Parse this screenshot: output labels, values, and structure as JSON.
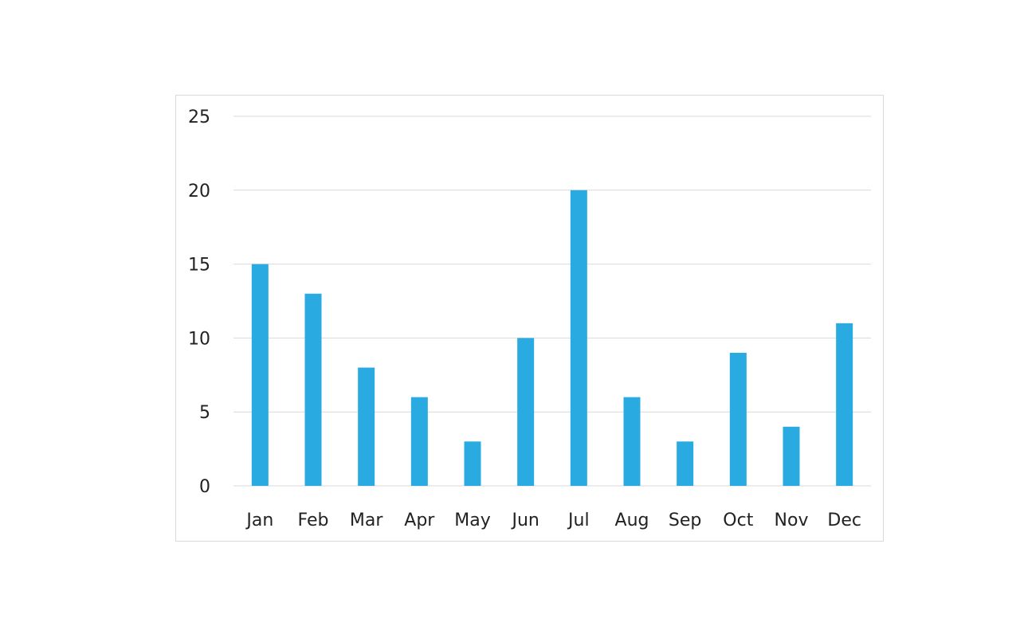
{
  "chart_data": {
    "type": "bar",
    "categories": [
      "Jan",
      "Feb",
      "Mar",
      "Apr",
      "May",
      "Jun",
      "Jul",
      "Aug",
      "Sep",
      "Oct",
      "Nov",
      "Dec"
    ],
    "values": [
      15,
      13,
      8,
      6,
      3,
      10,
      20,
      6,
      3,
      9,
      4,
      11
    ],
    "yticks": [
      "0",
      "5",
      "10",
      "15",
      "20",
      "25"
    ],
    "ylim": [
      0,
      25
    ],
    "grid": true,
    "legend": "none",
    "colors": {
      "bar": "#29abe2",
      "grid": "#d9d9d9",
      "frame": "#d9d9d9"
    }
  }
}
